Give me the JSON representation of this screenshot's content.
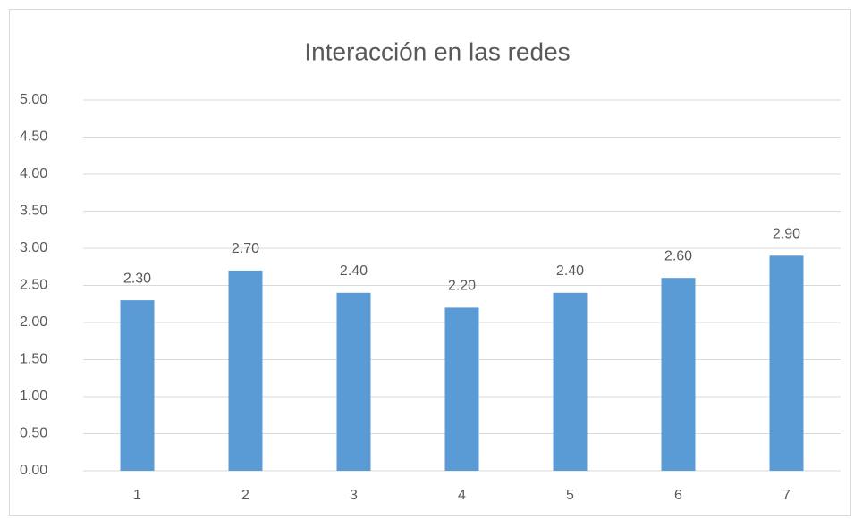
{
  "chart_data": {
    "type": "bar",
    "title": "Interacción en las redes",
    "categories": [
      "1",
      "2",
      "3",
      "4",
      "5",
      "6",
      "7"
    ],
    "values": [
      2.3,
      2.7,
      2.4,
      2.2,
      2.4,
      2.6,
      2.9
    ],
    "value_labels": [
      "2.30",
      "2.70",
      "2.40",
      "2.20",
      "2.40",
      "2.60",
      "2.90"
    ],
    "color": "#5b9bd5",
    "ylim": [
      0,
      5
    ],
    "yticks": [
      {
        "value": 0,
        "label": "0.00"
      },
      {
        "value": 0.5,
        "label": "0.50"
      },
      {
        "value": 1,
        "label": "1.00"
      },
      {
        "value": 1.5,
        "label": "1.50"
      },
      {
        "value": 2,
        "label": "2.00"
      },
      {
        "value": 2.5,
        "label": "2.50"
      },
      {
        "value": 3,
        "label": "3.00"
      },
      {
        "value": 3.5,
        "label": "3.50"
      },
      {
        "value": 4,
        "label": "4.00"
      },
      {
        "value": 4.5,
        "label": "4.50"
      },
      {
        "value": 5,
        "label": "5.00"
      }
    ],
    "grid": true
  }
}
